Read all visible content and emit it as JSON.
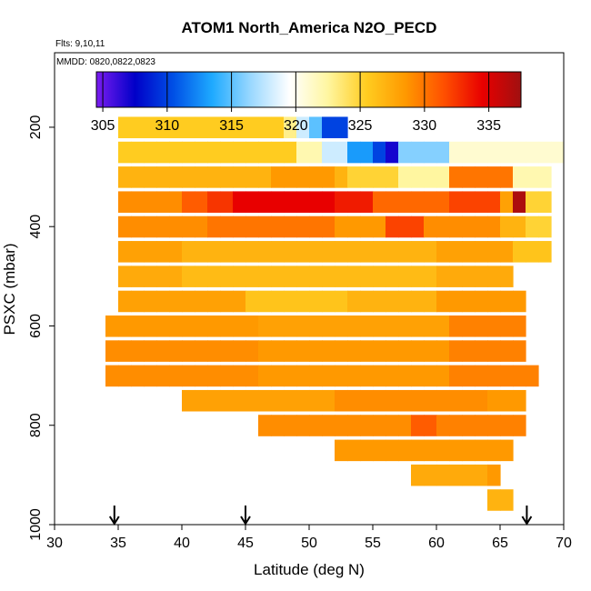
{
  "chart_data": {
    "type": "heatmap",
    "title": "ATOM1 North_America N2O_PECD",
    "flights_note": "Flts: 9,10,11",
    "dates_note": "MMDD: 0820,0822,0823",
    "xlabel": "Latitude (deg N)",
    "ylabel": "PSXC (mbar)",
    "xlim": [
      30,
      70
    ],
    "ylim": [
      1000,
      50
    ],
    "x_ticks": [
      30,
      35,
      40,
      45,
      50,
      55,
      60,
      65,
      70
    ],
    "y_ticks": [
      200,
      400,
      600,
      800,
      1000
    ],
    "colorbar": {
      "range": [
        304.5,
        337.5
      ],
      "ticks": [
        305,
        310,
        315,
        320,
        325,
        330,
        335
      ],
      "stops": [
        "#7a1cf0",
        "#0000c8",
        "#0050e6",
        "#1eaaff",
        "#9ad8ff",
        "#ffffff",
        "#fff6a0",
        "#ffcc20",
        "#ff9900",
        "#ff5000",
        "#e80000",
        "#a01010"
      ]
    },
    "arrows_latitude": [
      34.7,
      45,
      67.1
    ],
    "layers": [
      {
        "p": 200,
        "segments": [
          [
            35,
            48,
            325.5
          ],
          [
            48,
            49,
            323
          ],
          [
            49,
            50,
            318
          ],
          [
            50,
            51,
            315
          ],
          [
            51,
            53,
            310
          ]
        ]
      },
      {
        "p": 250,
        "segments": [
          [
            35,
            49,
            325.5
          ],
          [
            49,
            51,
            322
          ],
          [
            51,
            53,
            318
          ],
          [
            53,
            55,
            313
          ],
          [
            55,
            56,
            310
          ],
          [
            56,
            57,
            307
          ],
          [
            57,
            61,
            316
          ],
          [
            61,
            70,
            321
          ]
        ]
      },
      {
        "p": 300,
        "segments": [
          [
            35,
            47,
            327
          ],
          [
            47,
            52,
            328.5
          ],
          [
            52,
            53,
            327
          ],
          [
            53,
            57,
            325
          ],
          [
            57,
            61,
            322.5
          ],
          [
            61,
            66,
            330
          ],
          [
            66,
            69,
            322
          ]
        ]
      },
      {
        "p": 350,
        "segments": [
          [
            35,
            40,
            329
          ],
          [
            40,
            42,
            331
          ],
          [
            42,
            44,
            332.5
          ],
          [
            44,
            52,
            334.5
          ],
          [
            52,
            55,
            333.5
          ],
          [
            55,
            61,
            330.5
          ],
          [
            61,
            65,
            332
          ],
          [
            65,
            66,
            328
          ],
          [
            66,
            67,
            337
          ],
          [
            67,
            69,
            325
          ]
        ]
      },
      {
        "p": 400,
        "segments": [
          [
            35,
            42,
            329
          ],
          [
            42,
            52,
            330
          ],
          [
            52,
            56,
            328.5
          ],
          [
            56,
            59,
            332
          ],
          [
            59,
            65,
            329
          ],
          [
            65,
            67,
            327
          ],
          [
            67,
            69,
            325
          ]
        ]
      },
      {
        "p": 450,
        "segments": [
          [
            35,
            40,
            328
          ],
          [
            40,
            60,
            327
          ],
          [
            60,
            66,
            328
          ],
          [
            66,
            69,
            326
          ]
        ]
      },
      {
        "p": 500,
        "segments": [
          [
            35,
            40,
            327.5
          ],
          [
            40,
            60,
            326.5
          ],
          [
            60,
            66,
            327.5
          ]
        ]
      },
      {
        "p": 550,
        "segments": [
          [
            35,
            45,
            328
          ],
          [
            45,
            53,
            326
          ],
          [
            53,
            60,
            327
          ],
          [
            60,
            67,
            328.5
          ]
        ]
      },
      {
        "p": 600,
        "segments": [
          [
            34,
            46,
            328.5
          ],
          [
            46,
            61,
            328
          ],
          [
            61,
            67,
            329.5
          ]
        ]
      },
      {
        "p": 650,
        "segments": [
          [
            34,
            46,
            329
          ],
          [
            46,
            61,
            328.5
          ],
          [
            61,
            67,
            329.5
          ]
        ]
      },
      {
        "p": 700,
        "segments": [
          [
            34,
            46,
            329
          ],
          [
            46,
            61,
            328.5
          ],
          [
            61,
            68,
            329.5
          ]
        ]
      },
      {
        "p": 750,
        "segments": [
          [
            40,
            52,
            328
          ],
          [
            52,
            64,
            329
          ],
          [
            64,
            67,
            328.5
          ]
        ]
      },
      {
        "p": 800,
        "segments": [
          [
            46,
            58,
            329
          ],
          [
            58,
            60,
            331
          ],
          [
            60,
            67,
            329.5
          ]
        ]
      },
      {
        "p": 850,
        "segments": [
          [
            52,
            66,
            328.5
          ]
        ]
      },
      {
        "p": 900,
        "segments": [
          [
            58,
            64,
            327.5
          ],
          [
            64,
            65,
            328.5
          ]
        ]
      },
      {
        "p": 950,
        "segments": [
          [
            64,
            66,
            327
          ]
        ]
      }
    ]
  }
}
